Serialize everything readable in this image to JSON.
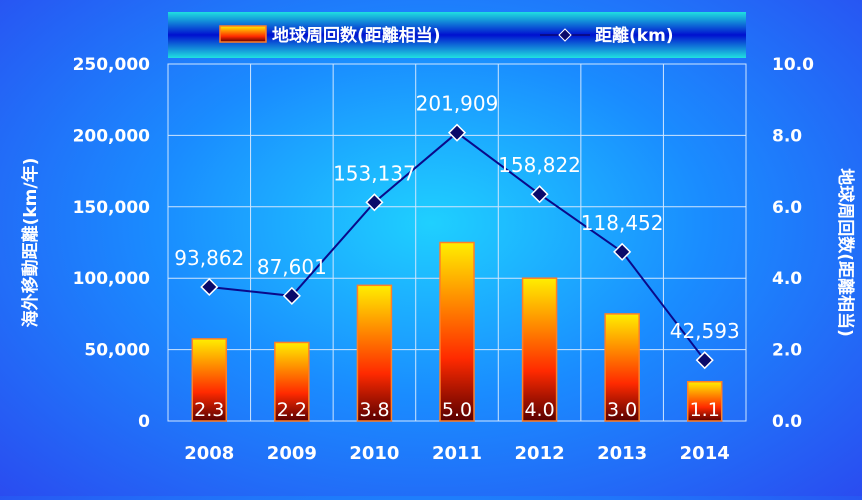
{
  "colors": {
    "bar_top": "#ffee00",
    "bar_mid": "#ff2a00",
    "bar_bottom": "#5a0000",
    "bar_stroke": "#ff7f27",
    "line": "#0a0a8a",
    "marker": "#0a0a6a",
    "axis_text": "#ffffff",
    "grid": "#cfe6ff"
  },
  "chart_data": {
    "type": "bar",
    "categories": [
      "2008",
      "2009",
      "2010",
      "2011",
      "2012",
      "2013",
      "2014"
    ],
    "series": [
      {
        "name": "地球周回数(距離相当)",
        "type": "bar",
        "axis": "right",
        "values": [
          2.3,
          2.2,
          3.8,
          5.0,
          4.0,
          3.0,
          1.1
        ],
        "labels": [
          "2.3",
          "2.2",
          "3.8",
          "5.0",
          "4.0",
          "3.0",
          "1.1"
        ]
      },
      {
        "name": "距離(km)",
        "type": "line",
        "axis": "left",
        "values": [
          93862,
          87601,
          153137,
          201909,
          158822,
          118452,
          42593
        ],
        "labels": [
          "93,862",
          "87,601",
          "153,137",
          "201,909",
          "158,822",
          "118,452",
          "42,593"
        ]
      }
    ],
    "ylabel": "海外移動距離(km/年)",
    "y2label": "地球周回数(距離相当)",
    "ylim": [
      0,
      250000
    ],
    "y2lim": [
      0,
      10
    ],
    "yticks": [
      "0",
      "50,000",
      "100,000",
      "150,000",
      "200,000",
      "250,000"
    ],
    "y2ticks": [
      "0.0",
      "2.0",
      "4.0",
      "6.0",
      "8.0",
      "10.0"
    ],
    "grid": true,
    "legend": "top"
  }
}
